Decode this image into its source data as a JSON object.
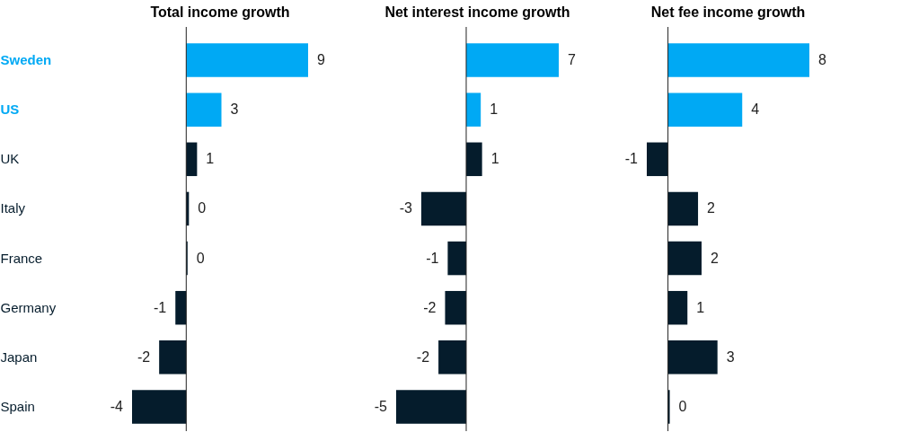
{
  "chart_data": [
    {
      "type": "bar",
      "orientation": "horizontal",
      "title": "Total income growth",
      "categories": [
        "Sweden",
        "US",
        "UK",
        "Italy",
        "France",
        "Germany",
        "Japan",
        "Spain"
      ],
      "values": [
        9.0,
        2.6,
        0.8,
        0.2,
        0.1,
        -0.8,
        -2.0,
        -4.0
      ],
      "value_labels": [
        "9",
        "3",
        "1",
        "0",
        "0",
        "-1",
        "-2",
        "-4"
      ],
      "colors": [
        "#00a9f4",
        "#00a9f4",
        "#051c2c",
        "#051c2c",
        "#051c2c",
        "#051c2c",
        "#051c2c",
        "#051c2c"
      ],
      "tick_labels": "y"
    },
    {
      "type": "bar",
      "orientation": "horizontal",
      "title": "Net interest income growth",
      "values": [
        7.0,
        1.1,
        1.2,
        -3.4,
        -1.4,
        -1.6,
        -2.1,
        -5.3
      ],
      "value_labels": [
        "7",
        "1",
        "1",
        "-3",
        "-1",
        "-2",
        "-2",
        "-5"
      ],
      "colors": [
        "#00a9f4",
        "#00a9f4",
        "#051c2c",
        "#051c2c",
        "#051c2c",
        "#051c2c",
        "#051c2c",
        "#051c2c"
      ],
      "tick_labels": false
    },
    {
      "type": "bar",
      "orientation": "horizontal",
      "title": "Net fee income growth",
      "values": [
        8.0,
        4.2,
        -1.2,
        1.7,
        1.9,
        1.1,
        2.8,
        0.1
      ],
      "value_labels": [
        "8",
        "4",
        "-1",
        "2",
        "2",
        "1",
        "3",
        "0"
      ],
      "colors": [
        "#00a9f4",
        "#00a9f4",
        "#051c2c",
        "#051c2c",
        "#051c2c",
        "#051c2c",
        "#051c2c",
        "#051c2c"
      ],
      "tick_labels": false
    }
  ]
}
